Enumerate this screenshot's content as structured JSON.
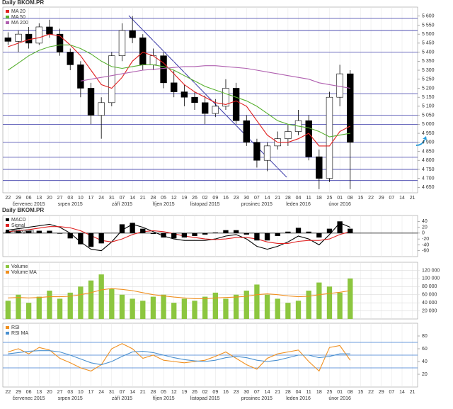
{
  "chart_data": [
    {
      "type": "candlestick",
      "title": "Daily BKOM.PR",
      "categories": [
        "22",
        "29",
        "06",
        "13",
        "20",
        "27",
        "03",
        "10",
        "17",
        "24",
        "31",
        "07",
        "14",
        "21",
        "28",
        "05",
        "12",
        "19",
        "26",
        "02",
        "09",
        "16",
        "23",
        "30",
        "07",
        "14",
        "21",
        "28",
        "04",
        "11",
        "18",
        "25",
        "01",
        "08",
        "15",
        "22",
        "29",
        "07",
        "14",
        "21"
      ],
      "months": [
        null,
        null,
        "červenec 2015",
        null,
        null,
        null,
        "srpen 2015",
        null,
        null,
        null,
        null,
        "září 2015",
        null,
        null,
        null,
        "říjen 2015",
        null,
        null,
        null,
        "listopad 2015",
        null,
        null,
        null,
        null,
        "prosinec 2015",
        null,
        null,
        null,
        "leden 2016",
        null,
        null,
        null,
        "únor 2016",
        null,
        null,
        null,
        null,
        null,
        null,
        null
      ],
      "open": [
        5480,
        5460,
        5500,
        5450,
        5540,
        5500,
        5400,
        5330,
        5200,
        5050,
        5120,
        5380,
        5520,
        5480,
        5330,
        5380,
        5230,
        5180,
        5150,
        5120,
        5060,
        5100,
        5200,
        5020,
        4900,
        4800,
        4880,
        4920,
        4960,
        5020,
        4820,
        4700,
        5150,
        5280,
        null,
        null,
        null,
        null,
        null,
        null
      ],
      "high": [
        5510,
        5520,
        5540,
        5560,
        5580,
        5530,
        5420,
        5350,
        5230,
        5150,
        5400,
        5560,
        5600,
        5500,
        5420,
        5400,
        5300,
        5220,
        5180,
        5160,
        5140,
        5250,
        5230,
        5050,
        4920,
        4900,
        4960,
        5000,
        5080,
        5050,
        4860,
        5180,
        5330,
        5300,
        null,
        null,
        null,
        null,
        null,
        null
      ],
      "low": [
        5440,
        5400,
        5420,
        5440,
        5480,
        5380,
        5300,
        5150,
        5000,
        4920,
        5100,
        5350,
        5450,
        5300,
        5300,
        5200,
        5150,
        5100,
        5080,
        5000,
        5040,
        5080,
        5000,
        4880,
        4760,
        4740,
        4860,
        4880,
        4940,
        4800,
        4640,
        4680,
        5100,
        4640,
        null,
        null,
        null,
        null,
        null,
        null
      ],
      "close": [
        5460,
        5500,
        5450,
        5540,
        5500,
        5400,
        5330,
        5200,
        5050,
        5120,
        5380,
        5520,
        5480,
        5330,
        5380,
        5230,
        5180,
        5150,
        5120,
        5060,
        5100,
        5200,
        5020,
        4900,
        4800,
        4880,
        4920,
        4960,
        5020,
        4820,
        4700,
        5150,
        5280,
        4900,
        null,
        null,
        null,
        null,
        null,
        null
      ],
      "up_color": "#ffffff",
      "down_color": "#000000",
      "series": [
        {
          "name": "MA 20",
          "color": "#e02020",
          "kind": "line",
          "values": [
            5430,
            5450,
            5470,
            5480,
            5500,
            5490,
            5440,
            5380,
            5300,
            5220,
            5200,
            5260,
            5350,
            5400,
            5380,
            5340,
            5280,
            5220,
            5180,
            5150,
            5120,
            5110,
            5130,
            5100,
            5020,
            4940,
            4900,
            4900,
            4920,
            4950,
            4880,
            4880,
            4960,
            4990,
            null,
            null,
            null,
            null,
            null,
            null
          ]
        },
        {
          "name": "MA 50",
          "color": "#58b030",
          "kind": "line",
          "values": [
            5300,
            5340,
            5380,
            5410,
            5430,
            5440,
            5440,
            5420,
            5390,
            5350,
            5320,
            5310,
            5320,
            5330,
            5330,
            5320,
            5300,
            5270,
            5240,
            5210,
            5190,
            5170,
            5150,
            5130,
            5100,
            5060,
            5020,
            5000,
            4990,
            4980,
            4960,
            4930,
            4940,
            4950,
            null,
            null,
            null,
            null,
            null,
            null
          ]
        },
        {
          "name": "MA 200",
          "color": "#b060b0",
          "kind": "line",
          "values": [
            null,
            null,
            null,
            null,
            null,
            null,
            null,
            5240,
            5250,
            5260,
            5270,
            5280,
            5290,
            5300,
            5305,
            5310,
            5315,
            5320,
            5320,
            5325,
            5325,
            5320,
            5315,
            5310,
            5300,
            5290,
            5280,
            5270,
            5260,
            5250,
            5230,
            5220,
            5210,
            5200,
            null,
            null,
            null,
            null,
            null,
            null
          ]
        }
      ],
      "levels": [
        5587,
        5520,
        5401,
        5170,
        5050,
        5000,
        4900,
        4817,
        4750,
        4688
      ],
      "level_color": "#3a3aa8",
      "ylim": [
        4620,
        5650
      ],
      "yticks": [
        {
          "value": 5600,
          "label": "5 600"
        },
        {
          "value": 5550,
          "label": "5 550"
        },
        {
          "value": 5500,
          "label": "5 500"
        },
        {
          "value": 5450,
          "label": "5 450"
        },
        {
          "value": 5400,
          "label": "5 400"
        },
        {
          "value": 5350,
          "label": "5 350"
        },
        {
          "value": 5300,
          "label": "5 300"
        },
        {
          "value": 5250,
          "label": "5 250"
        },
        {
          "value": 5200,
          "label": "5 200"
        },
        {
          "value": 5150,
          "label": "5 150"
        },
        {
          "value": 5100,
          "label": "5 100"
        },
        {
          "value": 5050,
          "label": "5 050"
        },
        {
          "value": 5000,
          "label": "5 000"
        },
        {
          "value": 4950,
          "label": "4 950"
        },
        {
          "value": 4900,
          "label": "4 900"
        },
        {
          "value": 4850,
          "label": "4 850"
        },
        {
          "value": 4800,
          "label": "4 800"
        },
        {
          "value": 4750,
          "label": "4 750"
        },
        {
          "value": 4700,
          "label": "4 700"
        },
        {
          "value": 4650,
          "label": "4 650"
        }
      ],
      "grid": false
    },
    {
      "type": "line",
      "title": "Daily BKOM.PR",
      "series": [
        {
          "name": "MACD",
          "color": "#000000",
          "kind": "line",
          "values": [
            10,
            15,
            20,
            25,
            30,
            20,
            0,
            -30,
            -55,
            -60,
            -30,
            10,
            30,
            20,
            5,
            -10,
            -20,
            -25,
            -25,
            -25,
            -20,
            -10,
            -5,
            -20,
            -45,
            -55,
            -45,
            -30,
            -10,
            -20,
            -40,
            -5,
            35,
            20,
            null,
            null,
            null,
            null,
            null,
            null
          ]
        },
        {
          "name": "Signal",
          "color": "#e02020",
          "kind": "line",
          "values": [
            5,
            8,
            12,
            17,
            22,
            22,
            18,
            8,
            -8,
            -25,
            -30,
            -20,
            -5,
            5,
            8,
            5,
            -2,
            -10,
            -15,
            -20,
            -22,
            -20,
            -15,
            -15,
            -20,
            -30,
            -35,
            -35,
            -28,
            -25,
            -25,
            -20,
            -5,
            5,
            null,
            null,
            null,
            null,
            null,
            null
          ]
        },
        {
          "name": "Histogram",
          "color": "#000000",
          "kind": "bar",
          "values": [
            5,
            7,
            8,
            8,
            8,
            -2,
            -18,
            -38,
            -47,
            -35,
            0,
            30,
            35,
            15,
            -3,
            -15,
            -18,
            -15,
            -10,
            -5,
            2,
            10,
            10,
            -5,
            -25,
            -25,
            -10,
            5,
            18,
            5,
            -15,
            15,
            40,
            15,
            null,
            null,
            null,
            null,
            null,
            null
          ]
        }
      ],
      "levels": [
        0
      ],
      "level_color": "#000000",
      "ylim": [
        -80,
        60
      ],
      "yticks": [
        40,
        20,
        0,
        -20,
        -40,
        -60
      ],
      "grid": false
    },
    {
      "type": "bar",
      "series": [
        {
          "name": "Volume",
          "color": "#8cc63f",
          "kind": "bar",
          "values": [
            45000,
            60000,
            40000,
            55000,
            70000,
            50000,
            65000,
            80000,
            95000,
            110000,
            75000,
            60000,
            50000,
            45000,
            55000,
            60000,
            40000,
            50000,
            45000,
            55000,
            65000,
            50000,
            60000,
            70000,
            85000,
            60000,
            50000,
            40000,
            45000,
            70000,
            90000,
            80000,
            65000,
            100000,
            null,
            null,
            null,
            null,
            null,
            null
          ]
        },
        {
          "name": "Volume MA",
          "color": "#f09020",
          "kind": "line",
          "values": [
            52000,
            53000,
            52000,
            53000,
            55000,
            55000,
            56000,
            60000,
            65000,
            72000,
            75000,
            73000,
            70000,
            65000,
            60000,
            57000,
            54000,
            52000,
            50000,
            50000,
            52000,
            53000,
            54000,
            56000,
            60000,
            62000,
            60000,
            57000,
            55000,
            56000,
            60000,
            63000,
            66000,
            70000,
            null,
            null,
            null,
            null,
            null,
            null
          ]
        }
      ],
      "levels": [],
      "level_color": "#3a3aa8",
      "ylim": [
        0,
        140000
      ],
      "yticks": [
        {
          "value": 120000,
          "label": "120 000"
        },
        {
          "value": 100000,
          "label": "100 000"
        },
        {
          "value": 80000,
          "label": "80 000"
        },
        {
          "value": 60000,
          "label": "60 000"
        },
        {
          "value": 40000,
          "label": "40 000"
        },
        {
          "value": 20000,
          "label": "20 000"
        }
      ],
      "grid": true
    },
    {
      "type": "line",
      "series": [
        {
          "name": "RSI",
          "color": "#f09020",
          "kind": "line",
          "values": [
            55,
            60,
            52,
            62,
            58,
            45,
            38,
            30,
            25,
            35,
            60,
            68,
            60,
            45,
            50,
            42,
            40,
            38,
            40,
            42,
            48,
            55,
            45,
            35,
            28,
            45,
            52,
            55,
            58,
            40,
            25,
            62,
            65,
            42,
            null,
            null,
            null,
            null,
            null,
            null
          ]
        },
        {
          "name": "RSI MA",
          "color": "#4a90d0",
          "kind": "line",
          "values": [
            52,
            54,
            56,
            57,
            57,
            55,
            50,
            44,
            38,
            35,
            40,
            48,
            55,
            56,
            54,
            50,
            46,
            43,
            41,
            40,
            42,
            46,
            48,
            46,
            42,
            40,
            42,
            46,
            50,
            50,
            46,
            48,
            52,
            52,
            null,
            null,
            null,
            null,
            null,
            null
          ]
        }
      ],
      "levels": [
        70,
        50,
        30
      ],
      "level_color": "#3a7ad0",
      "ylim": [
        0,
        100
      ],
      "yticks": [
        80,
        60,
        40,
        20
      ],
      "grid": false
    }
  ]
}
